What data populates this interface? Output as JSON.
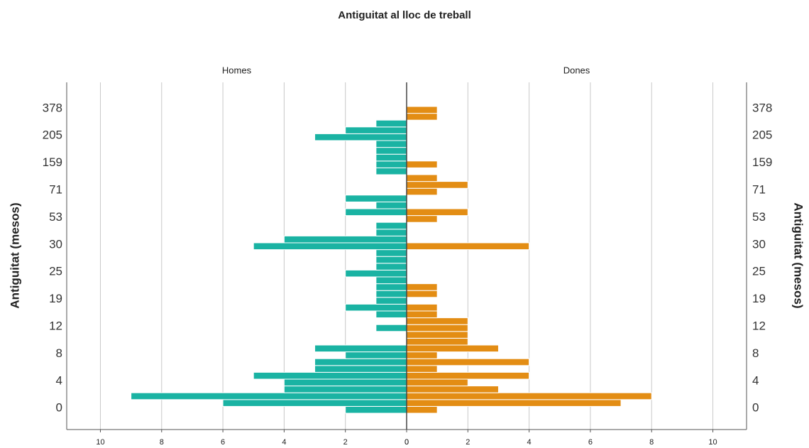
{
  "chart_data": {
    "type": "pyramid",
    "title": "Antiguitat al lloc de treball",
    "y_label": "Antiguitat (mesos)",
    "categories": [
      "0",
      null,
      null,
      null,
      "4",
      null,
      null,
      null,
      "8",
      null,
      null,
      null,
      "12",
      null,
      null,
      null,
      "19",
      null,
      null,
      null,
      "25",
      null,
      null,
      null,
      "30",
      null,
      null,
      null,
      "53",
      null,
      null,
      null,
      "71",
      null,
      null,
      null,
      "159",
      null,
      null,
      null,
      "205",
      null,
      null,
      null,
      "378"
    ],
    "series": [
      {
        "name": "Homes",
        "color": "#1ab3a3",
        "values": [
          2,
          6,
          9,
          4,
          4,
          5,
          3,
          3,
          2,
          3,
          0,
          0,
          1,
          0,
          1,
          2,
          1,
          1,
          1,
          1,
          2,
          1,
          1,
          1,
          5,
          4,
          1,
          1,
          0,
          2,
          1,
          2,
          0,
          0,
          0,
          1,
          1,
          1,
          1,
          1,
          3,
          2,
          1,
          0,
          0
        ]
      },
      {
        "name": "Dones",
        "color": "#e38d14",
        "values": [
          1,
          7,
          8,
          3,
          2,
          4,
          1,
          4,
          1,
          3,
          2,
          2,
          2,
          2,
          1,
          1,
          0,
          1,
          1,
          0,
          0,
          0,
          0,
          0,
          4,
          0,
          0,
          0,
          1,
          2,
          0,
          0,
          1,
          2,
          1,
          0,
          1,
          0,
          0,
          0,
          0,
          0,
          0,
          1,
          1
        ]
      }
    ],
    "xlim": [
      0,
      11.1
    ],
    "xticks": [
      0,
      2,
      4,
      6,
      8,
      10
    ],
    "grid": true
  }
}
